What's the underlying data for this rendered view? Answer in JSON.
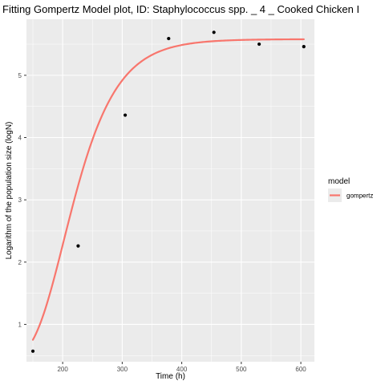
{
  "chart_data": {
    "type": "scatter",
    "title": "Fitting Gompertz Model plot, ID: Staphylococcus spp. _ 4 _ Cooked Chicken I",
    "xlabel": "Time (h)",
    "ylabel": "Logarithm of the population size (logN)",
    "xlim": [
      139.2,
      622.8
    ],
    "ylim": [
      0.4,
      5.9
    ],
    "xticks": [
      200,
      300,
      400,
      500,
      600
    ],
    "yticks": [
      1,
      2,
      3,
      4,
      5
    ],
    "grid": true,
    "legend": {
      "title": "model",
      "position": "right",
      "entries": [
        "gompertz"
      ]
    },
    "points": {
      "x": [
        150,
        226,
        305,
        378,
        454,
        530,
        605
      ],
      "y": [
        0.57,
        2.26,
        4.36,
        5.59,
        5.69,
        5.5,
        5.46
      ]
    },
    "series": [
      {
        "name": "gompertz",
        "color": "#F8766D",
        "model": "gompertz",
        "parameters": {
          "y0": 0.45,
          "ymax": 5.58,
          "mu": 0.038,
          "lag": 152
        },
        "x_range": [
          150,
          605
        ]
      }
    ],
    "colors": {
      "panel": "#EBEBEB",
      "grid_major": "#FFFFFF",
      "point": "#000000",
      "fit": "#F8766D"
    }
  }
}
